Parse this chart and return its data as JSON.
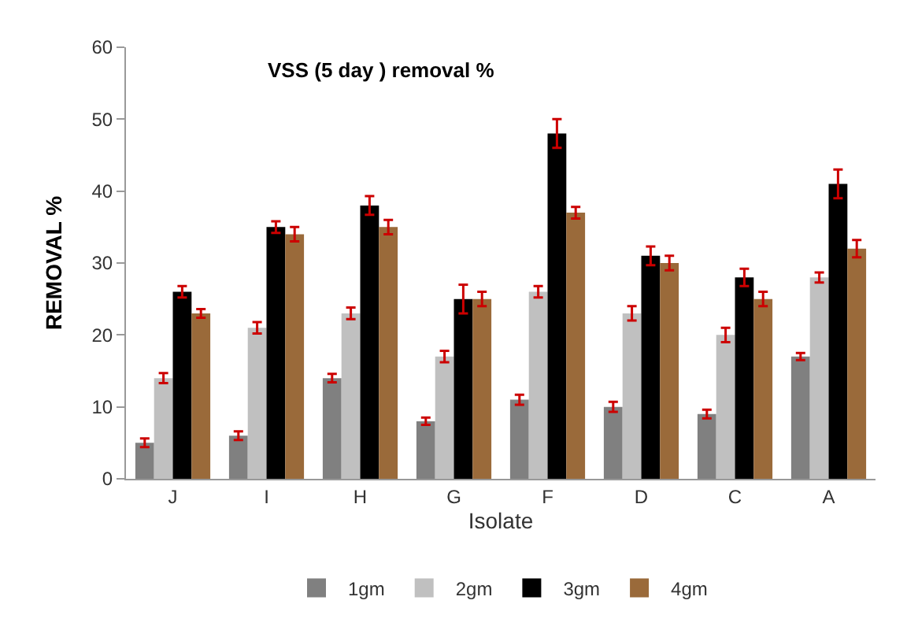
{
  "chart_data": {
    "type": "bar",
    "title": "VSS (5 day ) removal %",
    "xlabel": "Isolate",
    "ylabel": "REMOVAL %",
    "categories": [
      "J",
      "I",
      "H",
      "G",
      "F",
      "D",
      "C",
      "A"
    ],
    "series": [
      {
        "name": "1gm",
        "color": "#808080",
        "values": [
          5,
          6,
          14,
          8,
          11,
          10,
          9,
          17
        ],
        "errors": [
          0.6,
          0.6,
          0.6,
          0.5,
          0.7,
          0.7,
          0.6,
          0.5
        ]
      },
      {
        "name": "2gm",
        "color": "#c0c0c0",
        "values": [
          14,
          21,
          23,
          17,
          26,
          23,
          20,
          28
        ],
        "errors": [
          0.7,
          0.8,
          0.8,
          0.8,
          0.8,
          1,
          1,
          0.7
        ]
      },
      {
        "name": "3gm",
        "color": "#000000",
        "values": [
          26,
          35,
          38,
          25,
          48,
          31,
          28,
          41
        ],
        "errors": [
          0.8,
          0.8,
          1.3,
          2,
          2,
          1.3,
          1.2,
          2
        ]
      },
      {
        "name": "4gm",
        "color": "#9a6a3a",
        "values": [
          23,
          34,
          35,
          25,
          37,
          30,
          25,
          32
        ],
        "errors": [
          0.6,
          1,
          1,
          1,
          0.8,
          1,
          1,
          1.2
        ]
      }
    ],
    "ylim": [
      0,
      60
    ],
    "yticks": [
      0,
      10,
      20,
      30,
      40,
      50,
      60
    ],
    "legend": "bottom"
  }
}
